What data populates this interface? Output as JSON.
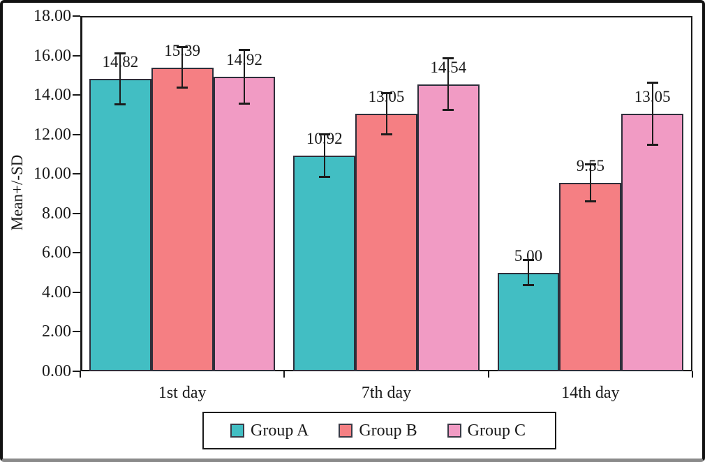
{
  "figure": {
    "background": "#ffffff",
    "frame_color": "#121212",
    "frame_bottom_color": "#8a8a8a",
    "axis_color": "#1a1a1a",
    "bar_border_color": "#2e2e3a"
  },
  "chart_data": {
    "type": "bar",
    "title": "",
    "xlabel": "",
    "ylabel": "Mean+/-SD",
    "categories": [
      "1st day",
      "7th day",
      "14th day"
    ],
    "series": [
      {
        "name": "Group A",
        "color": "#42BEC3",
        "values": [
          14.82,
          10.92,
          5.0
        ],
        "value_labels": [
          "14.82",
          "10.92",
          "5.00"
        ],
        "sd": [
          1.3,
          1.1,
          0.65
        ]
      },
      {
        "name": "Group B",
        "color": "#F57F83",
        "values": [
          15.39,
          13.05,
          9.55
        ],
        "value_labels": [
          "15.39",
          "13.05",
          "9.55"
        ],
        "sd": [
          1.05,
          1.05,
          0.95
        ]
      },
      {
        "name": "Group C",
        "color": "#F19BC4",
        "values": [
          14.92,
          14.54,
          13.05
        ],
        "value_labels": [
          "14.92",
          "14.54",
          "13.05"
        ],
        "sd": [
          1.37,
          1.33,
          1.6
        ]
      }
    ],
    "ylim": [
      0,
      18
    ],
    "ytick_step": 2,
    "ytick_labels": [
      "0.00",
      "2.00",
      "4.00",
      "6.00",
      "8.00",
      "10.00",
      "12.00",
      "14.00",
      "16.00",
      "18.00"
    ],
    "grid": false,
    "error_bars": true,
    "data_labels_shown": true,
    "legend_position": "bottom",
    "legend_entries": [
      "Group A",
      "Group B",
      "Group C"
    ]
  }
}
